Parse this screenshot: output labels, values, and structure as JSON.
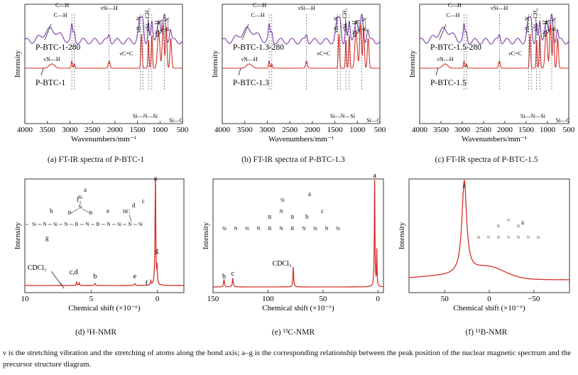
{
  "chart_data": [
    {
      "type": "line",
      "panel": "a",
      "caption": "(a) FT-IR spectra of P-BTC-1",
      "xlabel": "Wavenumbers/mm⁻¹",
      "ylabel": "Intensity",
      "x_reversed": true,
      "xlim": [
        4000,
        500
      ],
      "xticks": [
        4000,
        3500,
        3000,
        2500,
        2000,
        1500,
        1000,
        500
      ],
      "series": [
        {
          "name": "P-BTC-1-280",
          "color": "#7a3fa8"
        },
        {
          "name": "P-BTC-1",
          "color": "#d6302a"
        }
      ],
      "annotations": [
        "C—H",
        "C—H",
        "νSi—H",
        "νB—N",
        "νSi—CH₃",
        "νN—H",
        "Si—N",
        "B—N",
        "νN—H",
        "νC=C",
        "Si—N—Si",
        "Si—C"
      ]
    },
    {
      "type": "line",
      "panel": "b",
      "caption": "(b) FT-IR spectra of P-BTC-1.3",
      "xlabel": "Wavenumbers/mm⁻¹",
      "ylabel": "Intensity",
      "x_reversed": true,
      "xlim": [
        4000,
        500
      ],
      "xticks": [
        4000,
        3500,
        3000,
        2500,
        2000,
        1500,
        1000,
        500
      ],
      "series": [
        {
          "name": "P-BTC-1.3-280",
          "color": "#7a3fa8"
        },
        {
          "name": "P-BTC-1.3",
          "color": "#d6302a"
        }
      ],
      "annotations": [
        "C—H",
        "C—H",
        "νSi—H",
        "νB—N",
        "νSi—CH₃",
        "νN—H",
        "Si—N",
        "B—N",
        "νN—H",
        "νC=C",
        "Si—N—Si",
        "Si—C"
      ]
    },
    {
      "type": "line",
      "panel": "c",
      "caption": "(c) FT-IR spectra of P-BTC-1.5",
      "xlabel": "Wavenumbers/mm⁻¹",
      "ylabel": "Intensity",
      "x_reversed": true,
      "xlim": [
        4000,
        500
      ],
      "xticks": [
        4000,
        3500,
        3000,
        2500,
        2000,
        1500,
        1000,
        500
      ],
      "series": [
        {
          "name": "P-BTC-1.5-280",
          "color": "#7a3fa8"
        },
        {
          "name": "P-BTC-1.5",
          "color": "#d6302a"
        }
      ],
      "annotations": [
        "C—H",
        "C—H",
        "νSi—H",
        "νB—N",
        "νSi—CH₃",
        "νN—H",
        "Si—N",
        "B—N",
        "νN—H",
        "νC=C",
        "Si—N—Si",
        "Si—C"
      ]
    },
    {
      "type": "line",
      "panel": "d",
      "caption": "(d) ¹H-NMR",
      "xlabel": "Chemical shift (×10⁻⁶)",
      "ylabel": "Intensity",
      "x_reversed": true,
      "xlim": [
        10,
        -2
      ],
      "xticks": [
        10,
        5,
        0
      ],
      "peaks": [
        {
          "x": 7.26,
          "label": "CDCl₃"
        },
        {
          "x": 6.1,
          "label": "c,d"
        },
        {
          "x": 5.9,
          "label": ""
        },
        {
          "x": 4.7,
          "label": "b"
        },
        {
          "x": 1.7,
          "label": "e"
        },
        {
          "x": 0.5,
          "label": "f"
        },
        {
          "x": 0.15,
          "label": "a"
        },
        {
          "x": 0.05,
          "label": "g"
        }
      ],
      "structure_labels": [
        "a",
        "b",
        "c",
        "d",
        "e",
        "f",
        "g"
      ]
    },
    {
      "type": "line",
      "panel": "e",
      "caption": "(e) ¹³C-NMR",
      "xlabel": "Chemical shift (×10⁻⁶)",
      "ylabel": "Intensity",
      "x_reversed": true,
      "xlim": [
        150,
        -5
      ],
      "xticks": [
        150,
        100,
        50,
        0
      ],
      "peaks": [
        {
          "x": 140,
          "label": "b"
        },
        {
          "x": 132,
          "label": "c"
        },
        {
          "x": 77,
          "label": "CDCl₃"
        },
        {
          "x": 3,
          "label": "a"
        },
        {
          "x": 1,
          "label": ""
        }
      ],
      "structure_labels": [
        "a",
        "b",
        "c"
      ]
    },
    {
      "type": "line",
      "panel": "f",
      "caption": "(f) ¹¹B-NMR",
      "xlabel": "Chemical shift (×10⁻⁶)",
      "ylabel": "Intensity",
      "x_reversed": true,
      "xlim": [
        90,
        -90
      ],
      "xticks": [
        50,
        0,
        -50
      ],
      "peaks": [
        {
          "x": 28,
          "label": "a"
        },
        {
          "x": 0,
          "label": ""
        }
      ],
      "structure_labels": [
        "a"
      ]
    }
  ],
  "footnote": "ν is the stretching vibration and the stretching of atoms along the bond axis; a–g is the corresponding relationship between the peak position of the nuclear magnetic spectrum and the precursor structure diagram."
}
